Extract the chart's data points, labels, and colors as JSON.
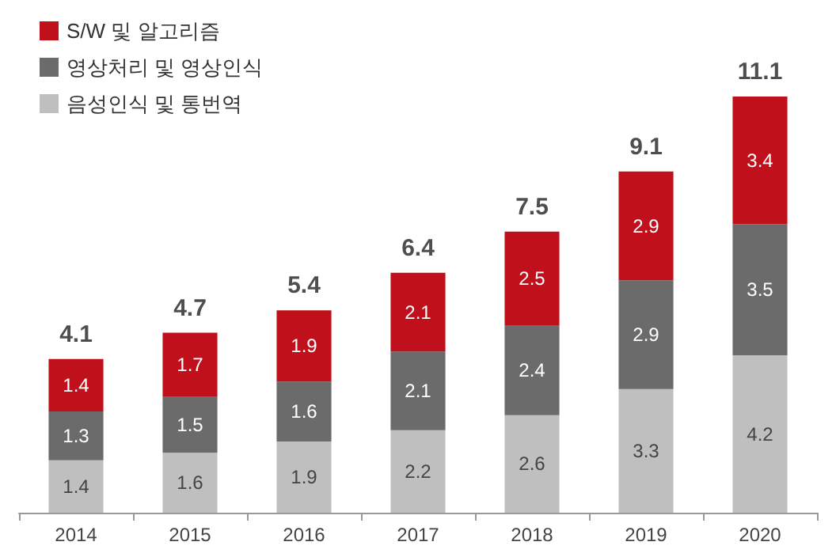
{
  "chart_data": {
    "type": "bar",
    "stacked": true,
    "categories": [
      "2014",
      "2015",
      "2016",
      "2017",
      "2018",
      "2019",
      "2020"
    ],
    "series": [
      {
        "name": "음성인식 및 통번역",
        "color": "#bfbfbf",
        "values": [
          1.4,
          1.6,
          1.9,
          2.2,
          2.6,
          3.3,
          4.2
        ]
      },
      {
        "name": "영상처리 및 영상인식",
        "color": "#6b6b6b",
        "values": [
          1.3,
          1.5,
          1.6,
          2.1,
          2.4,
          2.9,
          3.5
        ]
      },
      {
        "name": "S/W 및 알고리즘",
        "color": "#c0101c",
        "values": [
          1.4,
          1.7,
          1.9,
          2.1,
          2.5,
          2.9,
          3.4
        ]
      }
    ],
    "totals": [
      "4.1",
      "4.7",
      "5.4",
      "6.4",
      "7.5",
      "9.1",
      "11.1"
    ],
    "data_labels": true,
    "legend": "top left",
    "grid": false
  }
}
